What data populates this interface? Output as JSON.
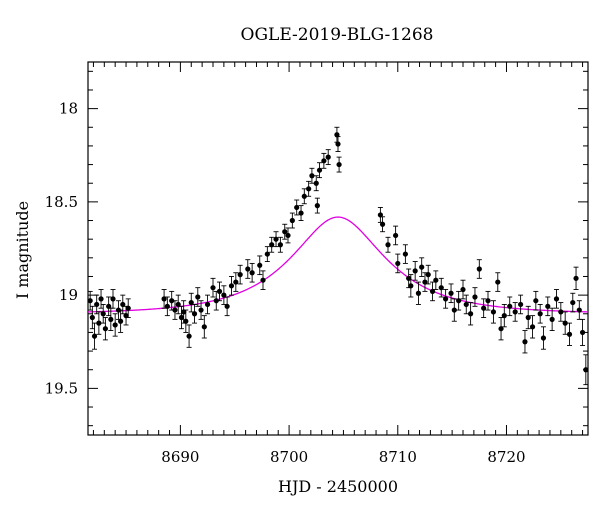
{
  "chart_data": {
    "type": "scatter",
    "title": "OGLE-2019-BLG-1268",
    "xlabel": "HJD - 2450000",
    "ylabel": "I magnitude",
    "xlim": [
      8681.5,
      8727.5
    ],
    "ylim": [
      19.75,
      17.75
    ],
    "y_inverted": true,
    "x_ticks": [
      8690,
      8700,
      8710,
      8720
    ],
    "x_tick_labels": [
      "8690",
      "8700",
      "8710",
      "8720"
    ],
    "y_ticks": [
      18,
      18.5,
      19,
      19.5
    ],
    "y_tick_labels": [
      "18",
      "18.5",
      "19",
      "19.5"
    ],
    "grid": false,
    "colors": {
      "data": "#000000",
      "model": "#e000e0"
    },
    "series": [
      {
        "kind": "points_with_errorbars",
        "points": [
          [
            8681.7,
            19.03,
            0.05
          ],
          [
            8681.9,
            19.12,
            0.06
          ],
          [
            8682.1,
            19.22,
            0.07
          ],
          [
            8682.3,
            19.05,
            0.05
          ],
          [
            8682.5,
            19.15,
            0.06
          ],
          [
            8682.7,
            19.02,
            0.05
          ],
          [
            8682.9,
            19.1,
            0.05
          ],
          [
            8683.1,
            19.18,
            0.06
          ],
          [
            8683.4,
            19.06,
            0.05
          ],
          [
            8683.6,
            19.13,
            0.06
          ],
          [
            8683.8,
            19.02,
            0.05
          ],
          [
            8684.0,
            19.16,
            0.06
          ],
          [
            8684.3,
            19.08,
            0.05
          ],
          [
            8684.5,
            19.14,
            0.06
          ],
          [
            8684.7,
            19.05,
            0.05
          ],
          [
            8685.0,
            19.11,
            0.05
          ],
          [
            8685.2,
            19.07,
            0.05
          ],
          [
            8688.5,
            19.02,
            0.05
          ],
          [
            8688.8,
            19.06,
            0.05
          ],
          [
            8689.2,
            19.03,
            0.05
          ],
          [
            8689.5,
            19.08,
            0.05
          ],
          [
            8689.8,
            19.05,
            0.05
          ],
          [
            8690.1,
            19.12,
            0.06
          ],
          [
            8690.3,
            19.09,
            0.06
          ],
          [
            8690.5,
            19.14,
            0.06
          ],
          [
            8690.8,
            19.22,
            0.06
          ],
          [
            8691.0,
            19.04,
            0.05
          ],
          [
            8691.3,
            19.1,
            0.05
          ],
          [
            8691.6,
            19.01,
            0.05
          ],
          [
            8691.9,
            19.08,
            0.05
          ],
          [
            8692.2,
            19.17,
            0.06
          ],
          [
            8692.5,
            19.05,
            0.05
          ],
          [
            8693.0,
            18.96,
            0.05
          ],
          [
            8693.3,
            19.03,
            0.05
          ],
          [
            8693.6,
            18.98,
            0.05
          ],
          [
            8694.0,
            19.0,
            0.05
          ],
          [
            8694.3,
            19.06,
            0.05
          ],
          [
            8694.7,
            18.95,
            0.05
          ],
          [
            8695.1,
            18.93,
            0.05
          ],
          [
            8695.5,
            18.89,
            0.05
          ],
          [
            8696.2,
            18.86,
            0.05
          ],
          [
            8696.6,
            18.88,
            0.05
          ],
          [
            8697.3,
            18.84,
            0.05
          ],
          [
            8697.6,
            18.92,
            0.05
          ],
          [
            8698.0,
            18.78,
            0.04
          ],
          [
            8698.4,
            18.73,
            0.04
          ],
          [
            8698.8,
            18.7,
            0.04
          ],
          [
            8699.2,
            18.73,
            0.04
          ],
          [
            8699.6,
            18.66,
            0.04
          ],
          [
            8699.9,
            18.68,
            0.04
          ],
          [
            8700.3,
            18.6,
            0.04
          ],
          [
            8700.7,
            18.53,
            0.04
          ],
          [
            8701.1,
            18.56,
            0.04
          ],
          [
            8701.4,
            18.47,
            0.04
          ],
          [
            8701.8,
            18.43,
            0.04
          ],
          [
            8702.1,
            18.36,
            0.04
          ],
          [
            8702.5,
            18.4,
            0.04
          ],
          [
            8702.8,
            18.33,
            0.04
          ],
          [
            8702.6,
            18.52,
            0.04
          ],
          [
            8703.2,
            18.28,
            0.04
          ],
          [
            8703.6,
            18.26,
            0.04
          ],
          [
            8704.4,
            18.14,
            0.04
          ],
          [
            8704.5,
            18.19,
            0.04
          ],
          [
            8704.6,
            18.3,
            0.04
          ],
          [
            8708.4,
            18.57,
            0.04
          ],
          [
            8708.6,
            18.62,
            0.04
          ],
          [
            8709.1,
            18.73,
            0.04
          ],
          [
            8709.8,
            18.68,
            0.05
          ],
          [
            8710.0,
            18.83,
            0.05
          ],
          [
            8710.7,
            18.78,
            0.05
          ],
          [
            8711.0,
            18.91,
            0.05
          ],
          [
            8711.2,
            18.95,
            0.06
          ],
          [
            8711.6,
            18.87,
            0.05
          ],
          [
            8711.9,
            18.99,
            0.06
          ],
          [
            8712.2,
            18.85,
            0.05
          ],
          [
            8712.5,
            18.93,
            0.05
          ],
          [
            8712.8,
            18.89,
            0.05
          ],
          [
            8713.2,
            18.98,
            0.05
          ],
          [
            8713.5,
            18.92,
            0.05
          ],
          [
            8714.0,
            18.96,
            0.05
          ],
          [
            8714.4,
            19.02,
            0.05
          ],
          [
            8714.9,
            18.99,
            0.05
          ],
          [
            8715.2,
            19.08,
            0.06
          ],
          [
            8715.6,
            19.03,
            0.05
          ],
          [
            8716.0,
            18.97,
            0.05
          ],
          [
            8716.3,
            19.05,
            0.05
          ],
          [
            8716.7,
            19.1,
            0.06
          ],
          [
            8717.1,
            19.01,
            0.05
          ],
          [
            8717.5,
            18.86,
            0.05
          ],
          [
            8717.9,
            19.07,
            0.05
          ],
          [
            8718.3,
            19.03,
            0.05
          ],
          [
            8718.8,
            19.09,
            0.06
          ],
          [
            8719.2,
            18.93,
            0.05
          ],
          [
            8719.5,
            19.18,
            0.06
          ],
          [
            8719.8,
            19.11,
            0.06
          ],
          [
            8720.3,
            19.06,
            0.05
          ],
          [
            8720.8,
            19.09,
            0.05
          ],
          [
            8721.3,
            19.05,
            0.05
          ],
          [
            8721.7,
            19.25,
            0.06
          ],
          [
            8722.0,
            19.12,
            0.06
          ],
          [
            8722.4,
            19.17,
            0.06
          ],
          [
            8722.7,
            19.03,
            0.05
          ],
          [
            8723.1,
            19.1,
            0.05
          ],
          [
            8723.4,
            19.23,
            0.06
          ],
          [
            8723.8,
            19.06,
            0.05
          ],
          [
            8724.2,
            19.13,
            0.06
          ],
          [
            8724.6,
            19.02,
            0.05
          ],
          [
            8725.0,
            19.09,
            0.05
          ],
          [
            8725.4,
            19.15,
            0.06
          ],
          [
            8725.8,
            19.21,
            0.06
          ],
          [
            8726.1,
            19.04,
            0.05
          ],
          [
            8726.4,
            18.91,
            0.06
          ],
          [
            8726.7,
            19.08,
            0.05
          ],
          [
            8727.0,
            19.2,
            0.07
          ],
          [
            8727.3,
            19.4,
            0.08
          ]
        ]
      },
      {
        "kind": "model_curve",
        "model": {
          "t0": 8704.5,
          "tE": 7.8,
          "u0": 0.52,
          "baseline_mag": 19.1,
          "blend_fraction": 0.55
        }
      }
    ]
  }
}
